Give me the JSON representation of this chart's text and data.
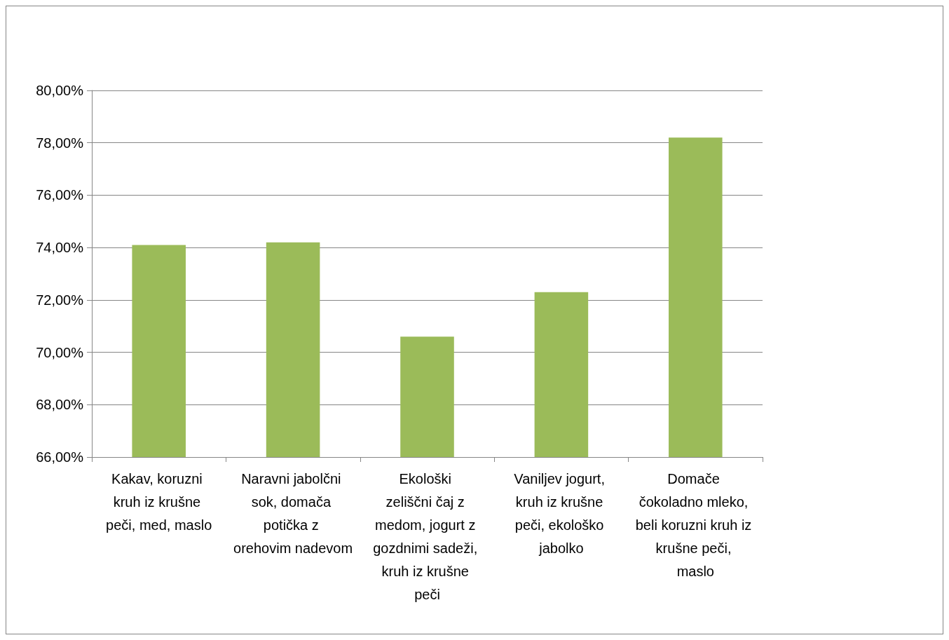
{
  "chart_data": {
    "type": "bar",
    "categories": [
      "Kakav, koruzni kruh iz krušne peči, med, maslo",
      "Naravni jabolčni sok, domača potička z orehovim nadevom",
      "Ekološki zeliščni čaj z medom, jogurt z gozdnimi sadeži, kruh iz krušne peči",
      "Vaniljev jogurt, kruh iz krušne peči, ekološko jabolko",
      "Domače čokoladno mleko, beli koruzni kruh iz krušne peči, maslo"
    ],
    "values": [
      74.1,
      74.2,
      70.6,
      72.3,
      78.2
    ],
    "color": "#9bbb59",
    "ylim": [
      66,
      80
    ],
    "yticks": [
      {
        "value": 66,
        "label": "66,00%"
      },
      {
        "value": 68,
        "label": "68,00%"
      },
      {
        "value": 70,
        "label": "70,00%"
      },
      {
        "value": 72,
        "label": "72,00%"
      },
      {
        "value": 74,
        "label": "74,00%"
      },
      {
        "value": 76,
        "label": "76,00%"
      },
      {
        "value": 78,
        "label": "78,00%"
      },
      {
        "value": 80,
        "label": "80,00%"
      }
    ],
    "grid": "y"
  }
}
